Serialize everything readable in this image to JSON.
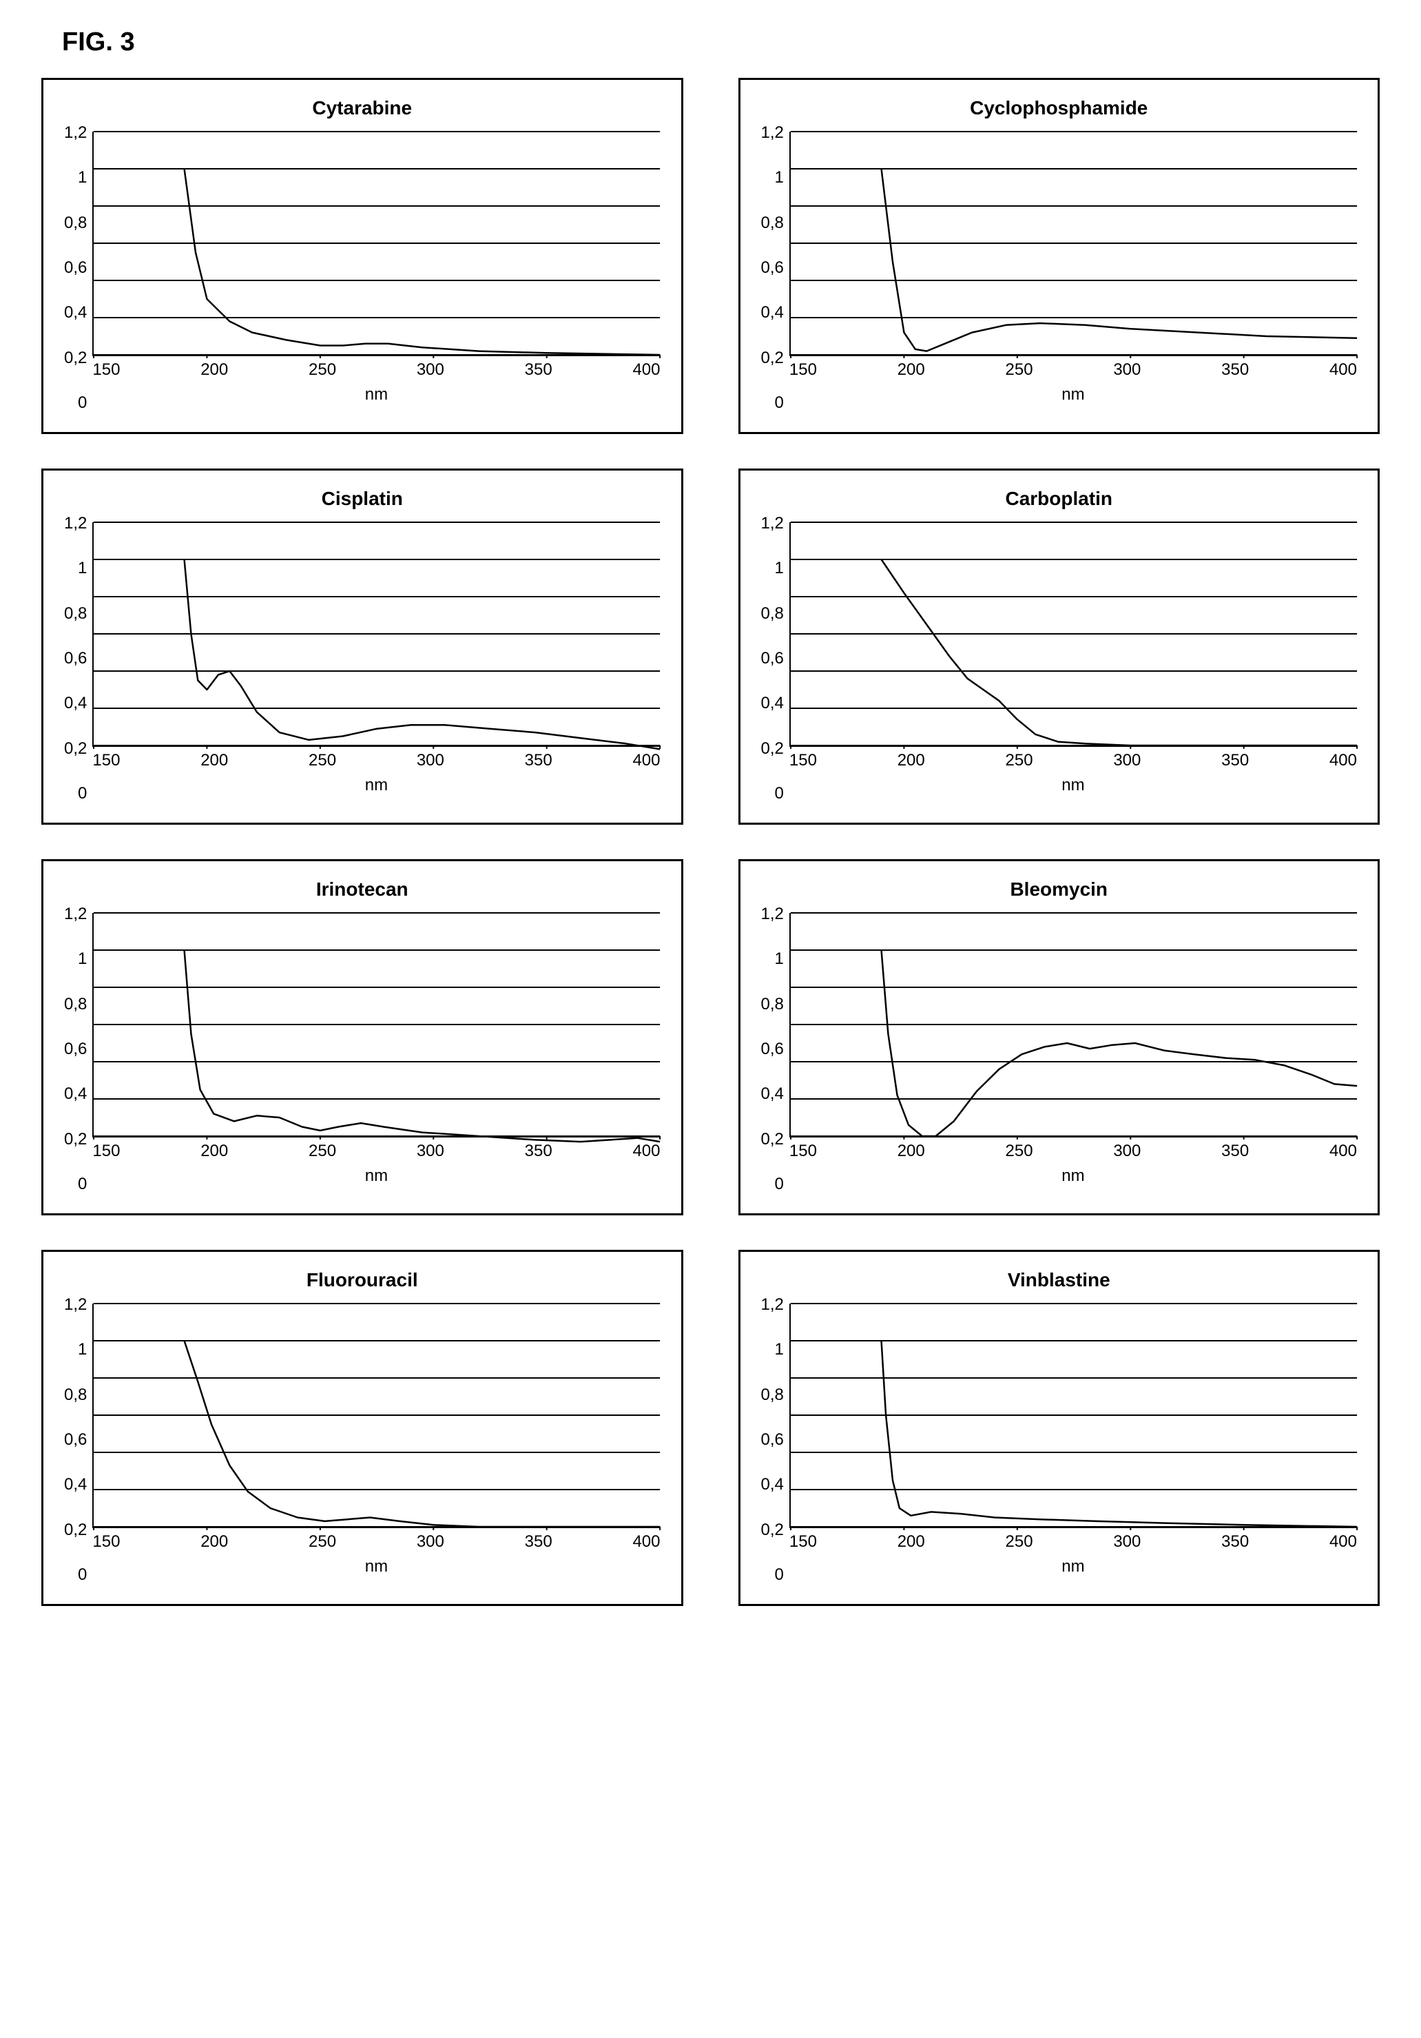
{
  "figure_label": "FIG. 3",
  "global": {
    "x_label": "nm",
    "x_ticks": [
      "150",
      "200",
      "250",
      "300",
      "350",
      "400"
    ],
    "y_ticks": [
      "1,2",
      "1",
      "0,8",
      "0,6",
      "0,4",
      "0,2",
      "0"
    ],
    "xlim": [
      150,
      400
    ],
    "ylim": [
      0,
      1.2
    ],
    "line_color": "#000000",
    "grid_color": "#000000",
    "bg_color": "#ffffff",
    "line_width": 2.5,
    "title_fontsize": 28,
    "tick_fontsize": 24,
    "grid_y_values": [
      0,
      0.2,
      0.4,
      0.6,
      0.8,
      1.0,
      1.2
    ]
  },
  "panels": [
    {
      "title": "Cytarabine",
      "series": [
        {
          "x": 190,
          "y": 1.0
        },
        {
          "x": 195,
          "y": 0.55
        },
        {
          "x": 200,
          "y": 0.3
        },
        {
          "x": 210,
          "y": 0.18
        },
        {
          "x": 220,
          "y": 0.12
        },
        {
          "x": 235,
          "y": 0.08
        },
        {
          "x": 250,
          "y": 0.05
        },
        {
          "x": 260,
          "y": 0.05
        },
        {
          "x": 270,
          "y": 0.06
        },
        {
          "x": 280,
          "y": 0.06
        },
        {
          "x": 295,
          "y": 0.04
        },
        {
          "x": 320,
          "y": 0.02
        },
        {
          "x": 350,
          "y": 0.01
        },
        {
          "x": 400,
          "y": 0.0
        }
      ]
    },
    {
      "title": "Cyclophosphamide",
      "series": [
        {
          "x": 190,
          "y": 1.0
        },
        {
          "x": 195,
          "y": 0.5
        },
        {
          "x": 200,
          "y": 0.12
        },
        {
          "x": 205,
          "y": 0.03
        },
        {
          "x": 210,
          "y": 0.02
        },
        {
          "x": 218,
          "y": 0.06
        },
        {
          "x": 230,
          "y": 0.12
        },
        {
          "x": 245,
          "y": 0.16
        },
        {
          "x": 260,
          "y": 0.17
        },
        {
          "x": 280,
          "y": 0.16
        },
        {
          "x": 300,
          "y": 0.14
        },
        {
          "x": 330,
          "y": 0.12
        },
        {
          "x": 360,
          "y": 0.1
        },
        {
          "x": 400,
          "y": 0.09
        }
      ]
    },
    {
      "title": "Cisplatin",
      "series": [
        {
          "x": 190,
          "y": 1.0
        },
        {
          "x": 193,
          "y": 0.6
        },
        {
          "x": 196,
          "y": 0.35
        },
        {
          "x": 200,
          "y": 0.3
        },
        {
          "x": 205,
          "y": 0.38
        },
        {
          "x": 210,
          "y": 0.4
        },
        {
          "x": 215,
          "y": 0.32
        },
        {
          "x": 222,
          "y": 0.18
        },
        {
          "x": 232,
          "y": 0.07
        },
        {
          "x": 245,
          "y": 0.03
        },
        {
          "x": 260,
          "y": 0.05
        },
        {
          "x": 275,
          "y": 0.09
        },
        {
          "x": 290,
          "y": 0.11
        },
        {
          "x": 305,
          "y": 0.11
        },
        {
          "x": 325,
          "y": 0.09
        },
        {
          "x": 345,
          "y": 0.07
        },
        {
          "x": 365,
          "y": 0.04
        },
        {
          "x": 385,
          "y": 0.01
        },
        {
          "x": 400,
          "y": -0.02
        }
      ]
    },
    {
      "title": "Carboplatin",
      "series": [
        {
          "x": 190,
          "y": 1.0
        },
        {
          "x": 200,
          "y": 0.82
        },
        {
          "x": 210,
          "y": 0.65
        },
        {
          "x": 220,
          "y": 0.48
        },
        {
          "x": 228,
          "y": 0.36
        },
        {
          "x": 235,
          "y": 0.3
        },
        {
          "x": 242,
          "y": 0.24
        },
        {
          "x": 250,
          "y": 0.14
        },
        {
          "x": 258,
          "y": 0.06
        },
        {
          "x": 268,
          "y": 0.02
        },
        {
          "x": 280,
          "y": 0.01
        },
        {
          "x": 300,
          "y": 0.0
        },
        {
          "x": 350,
          "y": 0.0
        },
        {
          "x": 400,
          "y": 0.0
        }
      ]
    },
    {
      "title": "Irinotecan",
      "series": [
        {
          "x": 190,
          "y": 1.0
        },
        {
          "x": 193,
          "y": 0.55
        },
        {
          "x": 197,
          "y": 0.25
        },
        {
          "x": 203,
          "y": 0.12
        },
        {
          "x": 212,
          "y": 0.08
        },
        {
          "x": 222,
          "y": 0.11
        },
        {
          "x": 232,
          "y": 0.1
        },
        {
          "x": 242,
          "y": 0.05
        },
        {
          "x": 250,
          "y": 0.03
        },
        {
          "x": 258,
          "y": 0.05
        },
        {
          "x": 268,
          "y": 0.07
        },
        {
          "x": 278,
          "y": 0.05
        },
        {
          "x": 295,
          "y": 0.02
        },
        {
          "x": 320,
          "y": 0.0
        },
        {
          "x": 345,
          "y": -0.02
        },
        {
          "x": 365,
          "y": -0.03
        },
        {
          "x": 378,
          "y": -0.02
        },
        {
          "x": 390,
          "y": -0.01
        },
        {
          "x": 400,
          "y": -0.03
        }
      ]
    },
    {
      "title": "Bleomycin",
      "series": [
        {
          "x": 190,
          "y": 1.0
        },
        {
          "x": 193,
          "y": 0.55
        },
        {
          "x": 197,
          "y": 0.22
        },
        {
          "x": 202,
          "y": 0.06
        },
        {
          "x": 208,
          "y": 0.0
        },
        {
          "x": 214,
          "y": 0.0
        },
        {
          "x": 222,
          "y": 0.08
        },
        {
          "x": 232,
          "y": 0.24
        },
        {
          "x": 242,
          "y": 0.36
        },
        {
          "x": 252,
          "y": 0.44
        },
        {
          "x": 262,
          "y": 0.48
        },
        {
          "x": 272,
          "y": 0.5
        },
        {
          "x": 282,
          "y": 0.47
        },
        {
          "x": 292,
          "y": 0.49
        },
        {
          "x": 302,
          "y": 0.5
        },
        {
          "x": 315,
          "y": 0.46
        },
        {
          "x": 328,
          "y": 0.44
        },
        {
          "x": 342,
          "y": 0.42
        },
        {
          "x": 355,
          "y": 0.41
        },
        {
          "x": 368,
          "y": 0.38
        },
        {
          "x": 380,
          "y": 0.33
        },
        {
          "x": 390,
          "y": 0.28
        },
        {
          "x": 400,
          "y": 0.27
        }
      ]
    },
    {
      "title": "Fluorouracil",
      "series": [
        {
          "x": 190,
          "y": 1.0
        },
        {
          "x": 196,
          "y": 0.78
        },
        {
          "x": 202,
          "y": 0.55
        },
        {
          "x": 210,
          "y": 0.33
        },
        {
          "x": 218,
          "y": 0.19
        },
        {
          "x": 228,
          "y": 0.1
        },
        {
          "x": 240,
          "y": 0.05
        },
        {
          "x": 252,
          "y": 0.03
        },
        {
          "x": 262,
          "y": 0.04
        },
        {
          "x": 272,
          "y": 0.05
        },
        {
          "x": 285,
          "y": 0.03
        },
        {
          "x": 300,
          "y": 0.01
        },
        {
          "x": 320,
          "y": 0.0
        },
        {
          "x": 350,
          "y": 0.0
        },
        {
          "x": 400,
          "y": 0.0
        }
      ]
    },
    {
      "title": "Vinblastine",
      "series": [
        {
          "x": 190,
          "y": 1.0
        },
        {
          "x": 192,
          "y": 0.6
        },
        {
          "x": 195,
          "y": 0.25
        },
        {
          "x": 198,
          "y": 0.1
        },
        {
          "x": 203,
          "y": 0.06
        },
        {
          "x": 212,
          "y": 0.08
        },
        {
          "x": 225,
          "y": 0.07
        },
        {
          "x": 240,
          "y": 0.05
        },
        {
          "x": 260,
          "y": 0.04
        },
        {
          "x": 285,
          "y": 0.03
        },
        {
          "x": 315,
          "y": 0.02
        },
        {
          "x": 350,
          "y": 0.01
        },
        {
          "x": 400,
          "y": 0.0
        }
      ]
    }
  ]
}
